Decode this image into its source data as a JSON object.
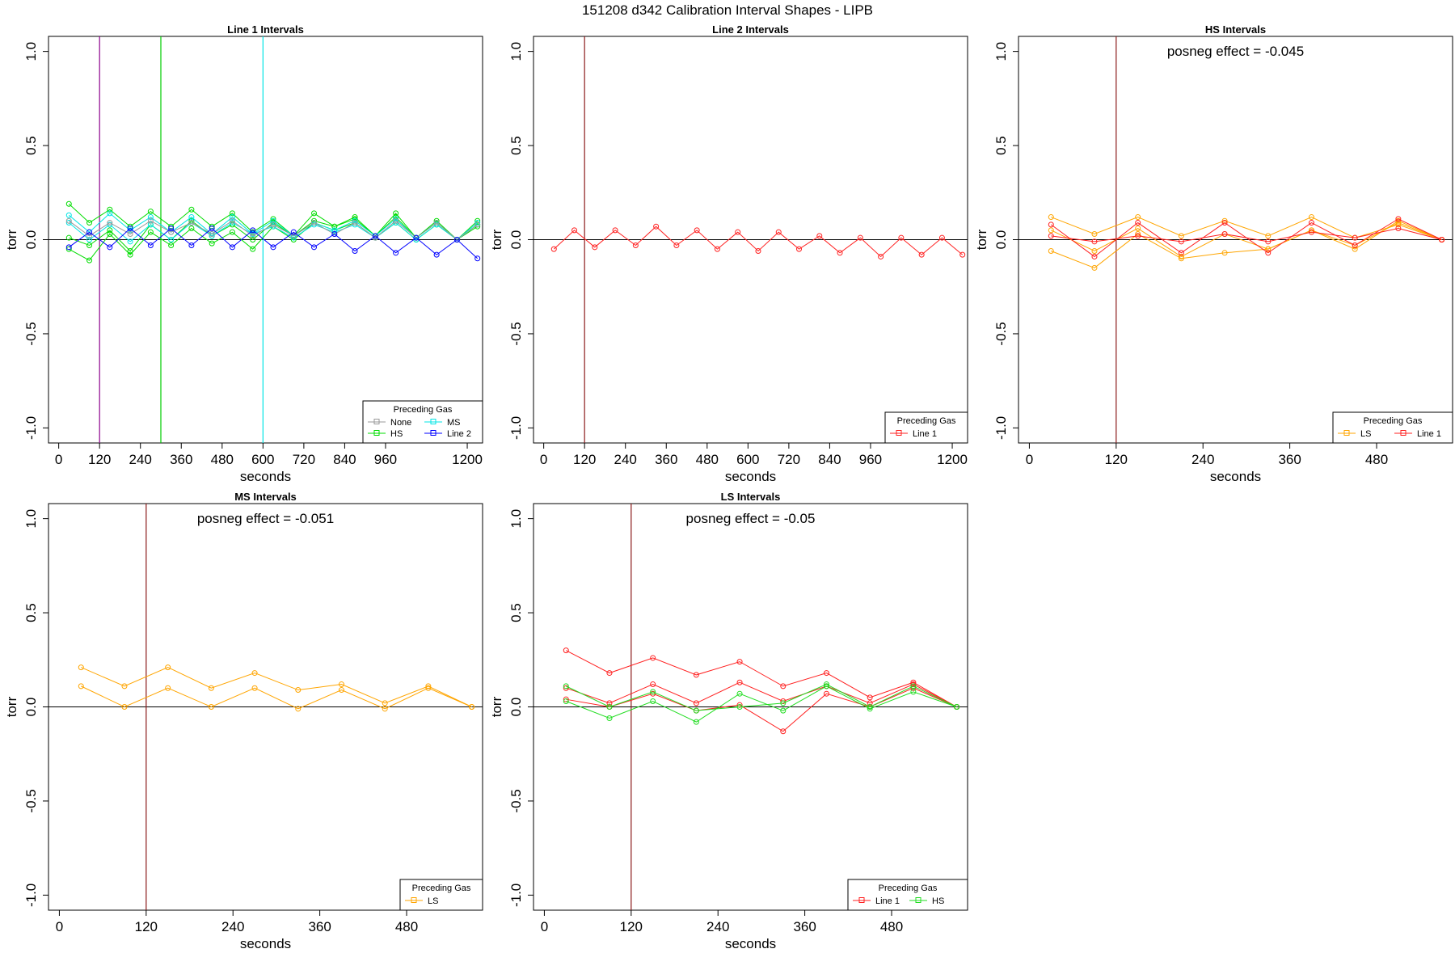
{
  "title": "151208   d342   Calibration Interval Shapes - LIPB",
  "chart_data": [
    {
      "type": "line",
      "title": "Line 1 Intervals",
      "xlabel": "seconds",
      "ylabel": "torr",
      "xlim": [
        -30,
        1245
      ],
      "ylim": [
        -1.08,
        1.08
      ],
      "xticks": [
        0,
        120,
        240,
        360,
        480,
        600,
        720,
        840,
        960,
        1200
      ],
      "yticks": [
        -1.0,
        -0.5,
        0.0,
        0.5,
        1.0
      ],
      "ytick_labels": [
        "-1.0",
        "-0.5",
        "0.0",
        "0.5",
        "1.0"
      ],
      "hline": 0,
      "vlines": [
        {
          "x": 120,
          "color": "#8B008B"
        },
        {
          "x": 300,
          "color": "#00CC00"
        },
        {
          "x": 600,
          "color": "#00E5E5"
        }
      ],
      "legend": {
        "title": "Preceding Gas",
        "position": "bottom-right",
        "columns": 2,
        "entries": [
          {
            "label": "None",
            "color": "#999999"
          },
          {
            "label": "MS",
            "color": "#00E5E5"
          },
          {
            "label": "HS",
            "color": "#00DD00"
          },
          {
            "label": "Line 2",
            "color": "#0000FF"
          }
        ]
      },
      "series": [
        {
          "name": "HS",
          "color": "#00DD00",
          "x": [
            30,
            90,
            150,
            210,
            270,
            330,
            390,
            450,
            510,
            570,
            630,
            690,
            750,
            810,
            870,
            930,
            990,
            1050,
            1110,
            1170,
            1230
          ],
          "values": [
            0.19,
            0.09,
            0.16,
            0.07,
            0.15,
            0.07,
            0.16,
            0.07,
            0.14,
            0.04,
            0.11,
            0.02,
            0.14,
            0.07,
            0.12,
            0.02,
            0.14,
            0.01,
            0.1,
            0.0,
            0.1
          ]
        },
        {
          "name": "HS",
          "color": "#00DD00",
          "x": [
            30,
            90,
            150,
            210,
            270,
            330,
            390,
            450,
            510,
            570,
            630,
            690,
            750,
            810,
            870,
            930,
            990,
            1050,
            1110,
            1170,
            1230
          ],
          "values": [
            -0.05,
            -0.11,
            0.03,
            -0.08,
            0.04,
            -0.03,
            0.06,
            -0.02,
            0.04,
            -0.05,
            0.07,
            0.0,
            0.09,
            0.05,
            0.09,
            0.01,
            0.09,
            0.0,
            0.08,
            0.0,
            0.07
          ]
        },
        {
          "name": "HS",
          "color": "#00DD00",
          "x": [
            30,
            90,
            150,
            210,
            270,
            330,
            390,
            450,
            510,
            570,
            630,
            690,
            750,
            810,
            870,
            930,
            990,
            1050,
            1110,
            1170,
            1230
          ],
          "values": [
            0.01,
            -0.03,
            0.05,
            -0.06,
            0.08,
            0.0,
            0.1,
            0.02,
            0.08,
            0.0,
            0.09,
            0.02,
            0.1,
            0.07,
            0.11,
            0.02,
            0.12,
            0.01,
            0.09,
            0.0,
            0.08
          ]
        },
        {
          "name": "MS",
          "color": "#00E5E5",
          "x": [
            30,
            90,
            150,
            210,
            270,
            330,
            390,
            450,
            510,
            570,
            630,
            690,
            750,
            810,
            870,
            930,
            990,
            1050,
            1110,
            1170,
            1230
          ],
          "values": [
            0.13,
            0.04,
            0.14,
            0.05,
            0.12,
            0.04,
            0.12,
            0.03,
            0.12,
            0.03,
            0.1,
            0.02,
            0.09,
            0.05,
            0.1,
            0.02,
            0.11,
            0.01,
            0.09,
            0.0,
            0.09
          ]
        },
        {
          "name": "MS",
          "color": "#00E5E5",
          "x": [
            30,
            90,
            150,
            210,
            270,
            330,
            390,
            450,
            510,
            570,
            630,
            690,
            750,
            810,
            870,
            930,
            990,
            1050,
            1110,
            1170,
            1230
          ],
          "values": [
            0.09,
            0.0,
            0.08,
            -0.01,
            0.08,
            0.0,
            0.09,
            0.02,
            0.09,
            0.03,
            0.07,
            0.01,
            0.08,
            0.04,
            0.08,
            0.01,
            0.09,
            0.0,
            0.08,
            0.0,
            0.08
          ]
        },
        {
          "name": "None",
          "color": "#999999",
          "x": [
            30,
            90,
            150,
            210,
            270,
            330,
            390,
            450,
            510,
            570,
            630,
            690,
            750,
            810,
            870,
            930,
            990,
            1050,
            1110,
            1170,
            1230
          ],
          "values": [
            0.1,
            0.02,
            0.09,
            0.03,
            0.1,
            0.04,
            0.09,
            0.03,
            0.1,
            0.02,
            0.08,
            0.02,
            0.09,
            0.03,
            0.09,
            0.01,
            0.1,
            0.01,
            0.09,
            0.0,
            0.08
          ]
        },
        {
          "name": "Line 2",
          "color": "#0000FF",
          "x": [
            30,
            90,
            150,
            210,
            270,
            330,
            390,
            450,
            510,
            570,
            630,
            690,
            750,
            810,
            870,
            930,
            990,
            1050,
            1110,
            1170,
            1230
          ],
          "values": [
            -0.04,
            0.04,
            -0.04,
            0.06,
            -0.03,
            0.06,
            -0.03,
            0.06,
            -0.04,
            0.05,
            -0.04,
            0.04,
            -0.04,
            0.03,
            -0.06,
            0.02,
            -0.07,
            0.01,
            -0.08,
            0.0,
            -0.1
          ]
        }
      ]
    },
    {
      "type": "line",
      "title": "Line 2 Intervals",
      "xlabel": "seconds",
      "ylabel": "torr",
      "xlim": [
        -30,
        1245
      ],
      "ylim": [
        -1.08,
        1.08
      ],
      "xticks": [
        0,
        120,
        240,
        360,
        480,
        600,
        720,
        840,
        960,
        1200
      ],
      "yticks": [
        -1.0,
        -0.5,
        0.0,
        0.5,
        1.0
      ],
      "ytick_labels": [
        "-1.0",
        "-0.5",
        "0.0",
        "0.5",
        "1.0"
      ],
      "hline": 0,
      "vlines": [
        {
          "x": 120,
          "color": "#8B1A1A"
        }
      ],
      "legend": {
        "title": "Preceding Gas",
        "position": "bottom-right",
        "columns": 1,
        "entries": [
          {
            "label": "Line 1",
            "color": "#FF2020"
          }
        ]
      },
      "series": [
        {
          "name": "Line 1",
          "color": "#FF2020",
          "x": [
            30,
            90,
            150,
            210,
            270,
            330,
            390,
            450,
            510,
            570,
            630,
            690,
            750,
            810,
            870,
            930,
            990,
            1050,
            1110,
            1170,
            1230
          ],
          "values": [
            -0.05,
            0.05,
            -0.04,
            0.05,
            -0.03,
            0.07,
            -0.03,
            0.05,
            -0.05,
            0.04,
            -0.06,
            0.04,
            -0.05,
            0.02,
            -0.07,
            0.01,
            -0.09,
            0.01,
            -0.08,
            0.01,
            -0.08
          ]
        }
      ]
    },
    {
      "type": "line",
      "title": "HS Intervals",
      "xlabel": "seconds",
      "ylabel": "torr",
      "xlim": [
        -15,
        585
      ],
      "ylim": [
        -1.08,
        1.08
      ],
      "xticks": [
        0,
        120,
        240,
        360,
        480
      ],
      "yticks": [
        -1.0,
        -0.5,
        0.0,
        0.5,
        1.0
      ],
      "ytick_labels": [
        "-1.0",
        "-0.5",
        "0.0",
        "0.5",
        "1.0"
      ],
      "hline": 0,
      "vlines": [
        {
          "x": 120,
          "color": "#8B1A1A"
        }
      ],
      "annotation": "posneg effect = -0.045",
      "legend": {
        "title": "Preceding Gas",
        "position": "bottom-right",
        "columns": 2,
        "entries": [
          {
            "label": "LS",
            "color": "#FFA500"
          },
          {
            "label": "Line 1",
            "color": "#FF2020"
          }
        ]
      },
      "series": [
        {
          "name": "LS",
          "color": "#FFA500",
          "x": [
            30,
            90,
            150,
            210,
            270,
            330,
            390,
            450,
            510,
            570
          ],
          "values": [
            0.12,
            0.03,
            0.12,
            0.02,
            0.1,
            0.02,
            0.12,
            0.01,
            0.08,
            0.0
          ]
        },
        {
          "name": "LS",
          "color": "#FFA500",
          "x": [
            30,
            90,
            150,
            210,
            270,
            330,
            390,
            450,
            510,
            570
          ],
          "values": [
            0.05,
            -0.06,
            0.06,
            -0.09,
            0.03,
            -0.05,
            0.05,
            -0.05,
            0.1,
            0.0
          ]
        },
        {
          "name": "LS",
          "color": "#FFA500",
          "x": [
            30,
            90,
            150,
            210,
            270,
            330,
            390,
            450,
            510,
            570
          ],
          "values": [
            -0.06,
            -0.15,
            0.03,
            -0.1,
            -0.07,
            -0.05,
            0.05,
            -0.03,
            0.09,
            0.0
          ]
        },
        {
          "name": "Line 1",
          "color": "#FF2020",
          "x": [
            30,
            90,
            150,
            210,
            270,
            330,
            390,
            450,
            510,
            570
          ],
          "values": [
            0.08,
            -0.09,
            0.09,
            -0.07,
            0.09,
            -0.07,
            0.09,
            -0.03,
            0.11,
            0.0
          ]
        },
        {
          "name": "Line 1",
          "color": "#FF2020",
          "x": [
            30,
            90,
            150,
            210,
            270,
            330,
            390,
            450,
            510,
            570
          ],
          "values": [
            0.02,
            -0.01,
            0.02,
            -0.01,
            0.03,
            -0.01,
            0.04,
            0.01,
            0.06,
            0.0
          ]
        }
      ]
    },
    {
      "type": "line",
      "title": "MS Intervals",
      "xlabel": "seconds",
      "ylabel": "torr",
      "xlim": [
        -15,
        585
      ],
      "ylim": [
        -1.08,
        1.08
      ],
      "xticks": [
        0,
        120,
        240,
        360,
        480
      ],
      "yticks": [
        -1.0,
        -0.5,
        0.0,
        0.5,
        1.0
      ],
      "ytick_labels": [
        "-1.0",
        "-0.5",
        "0.0",
        "0.5",
        "1.0"
      ],
      "hline": 0,
      "vlines": [
        {
          "x": 120,
          "color": "#8B1A1A"
        }
      ],
      "annotation": "posneg effect = -0.051",
      "legend": {
        "title": "Preceding Gas",
        "position": "bottom-right",
        "columns": 1,
        "entries": [
          {
            "label": "LS",
            "color": "#FFA500"
          }
        ]
      },
      "series": [
        {
          "name": "LS",
          "color": "#FFA500",
          "x": [
            30,
            90,
            150,
            210,
            270,
            330,
            390,
            450,
            510,
            570
          ],
          "values": [
            0.21,
            0.11,
            0.21,
            0.1,
            0.18,
            0.09,
            0.12,
            0.02,
            0.11,
            0.0
          ]
        },
        {
          "name": "LS",
          "color": "#FFA500",
          "x": [
            30,
            90,
            150,
            210,
            270,
            330,
            390,
            450,
            510,
            570
          ],
          "values": [
            0.11,
            0.0,
            0.1,
            0.0,
            0.1,
            -0.01,
            0.09,
            -0.01,
            0.1,
            0.0
          ]
        }
      ]
    },
    {
      "type": "line",
      "title": "LS Intervals",
      "xlabel": "seconds",
      "ylabel": "torr",
      "xlim": [
        -15,
        585
      ],
      "ylim": [
        -1.08,
        1.08
      ],
      "xticks": [
        0,
        120,
        240,
        360,
        480
      ],
      "yticks": [
        -1.0,
        -0.5,
        0.0,
        0.5,
        1.0
      ],
      "ytick_labels": [
        "-1.0",
        "-0.5",
        "0.0",
        "0.5",
        "1.0"
      ],
      "hline": 0,
      "vlines": [
        {
          "x": 120,
          "color": "#8B1A1A"
        }
      ],
      "annotation": "posneg effect = -0.05",
      "legend": {
        "title": "Preceding Gas",
        "position": "bottom-right",
        "columns": 2,
        "entries": [
          {
            "label": "Line 1",
            "color": "#FF2020"
          },
          {
            "label": "HS",
            "color": "#22DD22"
          }
        ]
      },
      "series": [
        {
          "name": "Line 1",
          "color": "#FF2020",
          "x": [
            30,
            90,
            150,
            210,
            270,
            330,
            390,
            450,
            510,
            570
          ],
          "values": [
            0.3,
            0.18,
            0.26,
            0.17,
            0.24,
            0.11,
            0.18,
            0.05,
            0.13,
            0.0
          ]
        },
        {
          "name": "Line 1",
          "color": "#FF2020",
          "x": [
            30,
            90,
            150,
            210,
            270,
            330,
            390,
            450,
            510,
            570
          ],
          "values": [
            0.1,
            0.02,
            0.12,
            0.02,
            0.13,
            0.03,
            0.11,
            0.02,
            0.12,
            0.0
          ]
        },
        {
          "name": "Line 1",
          "color": "#FF2020",
          "x": [
            30,
            90,
            150,
            210,
            270,
            330,
            390,
            450,
            510,
            570
          ],
          "values": [
            0.04,
            0.0,
            0.07,
            -0.02,
            0.01,
            -0.13,
            0.07,
            0.0,
            0.1,
            0.0
          ]
        },
        {
          "name": "HS",
          "color": "#22DD22",
          "x": [
            30,
            90,
            150,
            210,
            270,
            330,
            390,
            450,
            510,
            570
          ],
          "values": [
            0.11,
            0.0,
            0.08,
            -0.02,
            0.0,
            0.02,
            0.12,
            0.0,
            0.11,
            0.0
          ]
        },
        {
          "name": "HS",
          "color": "#22DD22",
          "x": [
            30,
            90,
            150,
            210,
            270,
            330,
            390,
            450,
            510,
            570
          ],
          "values": [
            0.03,
            -0.06,
            0.03,
            -0.08,
            0.07,
            -0.02,
            0.11,
            -0.01,
            0.08,
            0.0
          ]
        }
      ]
    }
  ]
}
